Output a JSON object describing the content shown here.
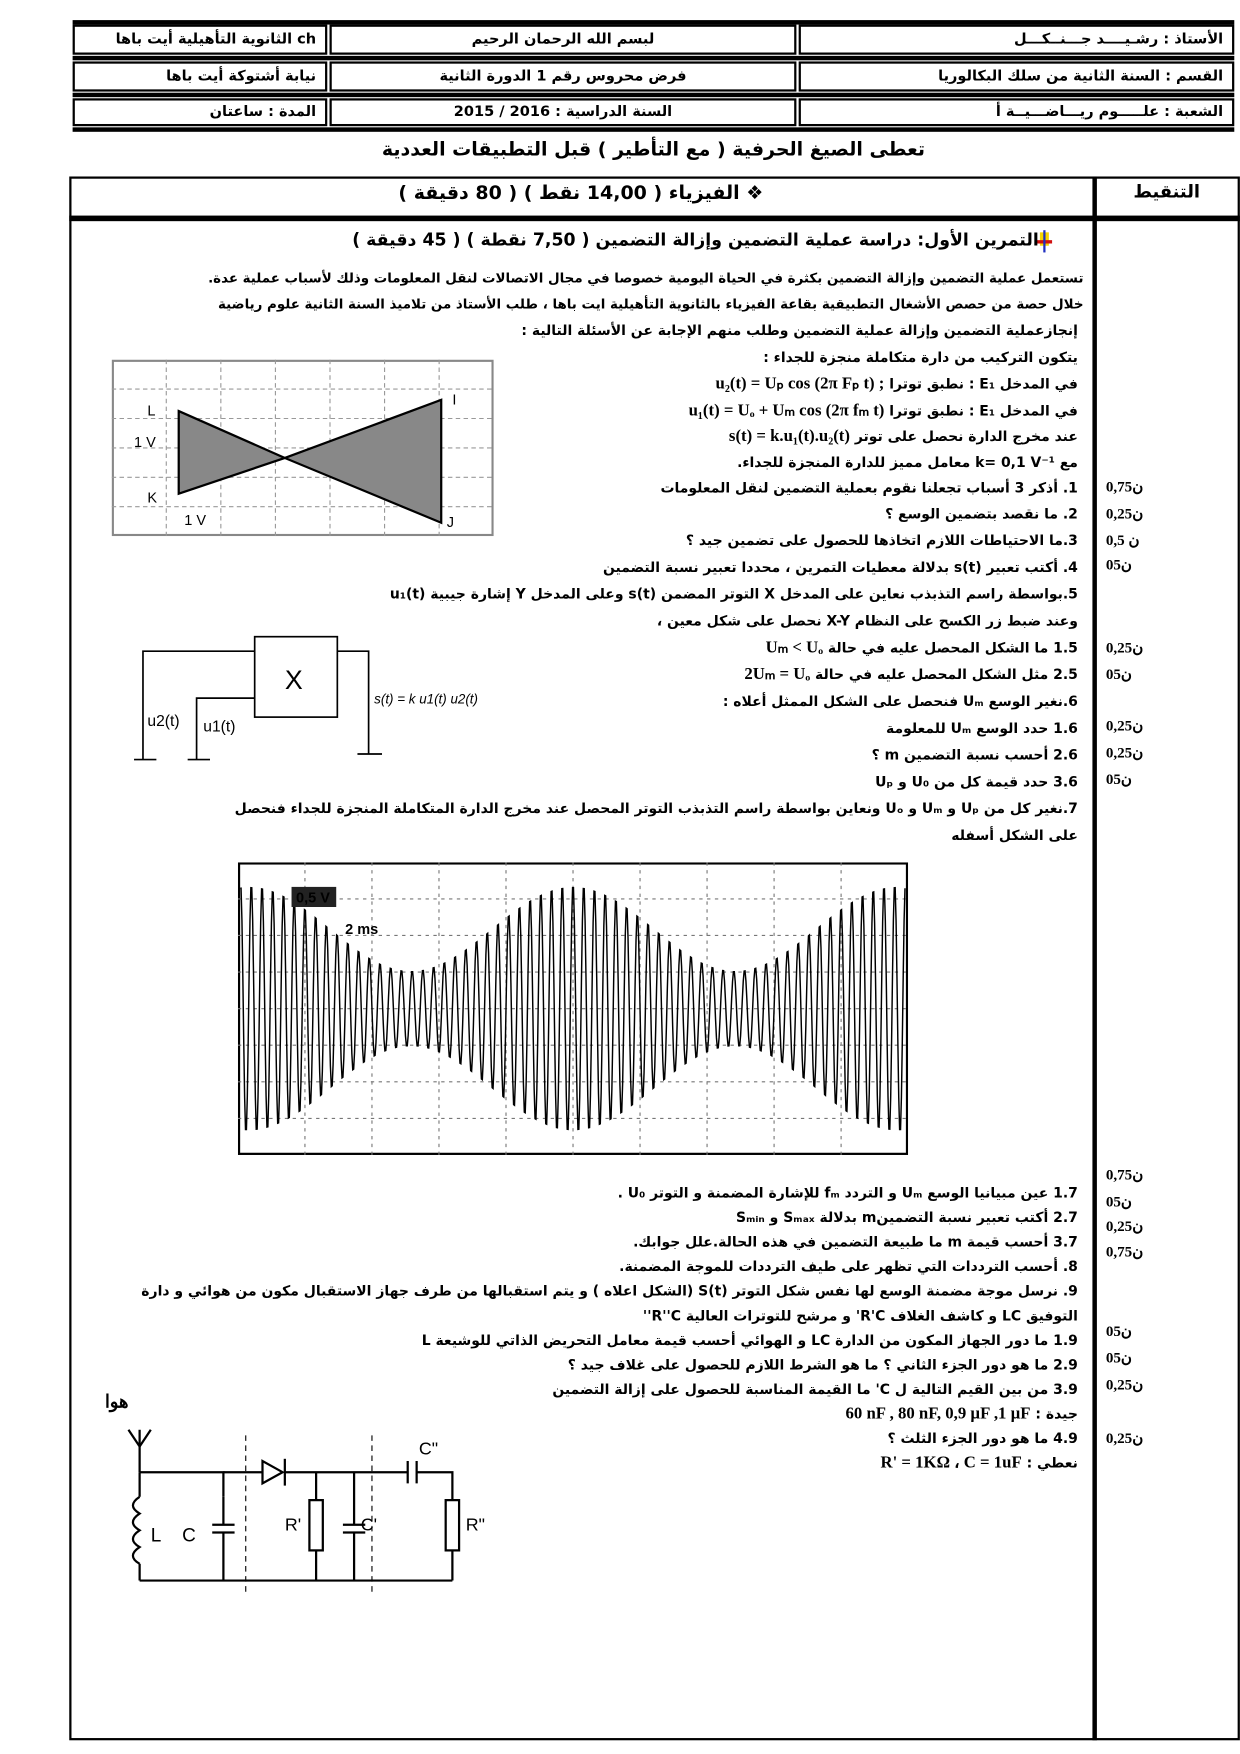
{
  "header": {
    "teacher": "الأستاذ : رشـيــــد جـــنــكـــل",
    "bismillah": "لبسم الله الرحمان الرحيم",
    "school": "ch الثانوية التأهيلية أيت باها",
    "level": "القسم : السنة الثانية من سلك البكالوريا",
    "exam": "فرض محروس رقم 1 الدورة الثانية",
    "directorate": "نيابة أشتوكة أيت باها",
    "branch": "الشعبة : علـــــوم ريـــاضـــيــة أ",
    "year": "السنة الدراسية : 2016 / 2015",
    "duration": "المدة : ساعتان"
  },
  "notice": "تعطى الصيغ الحرفية ( مع التأطير ) قبل التطبيقات العددية",
  "grading_header": "التنقيط",
  "physics_header": "❖ الفيزياء ( 14,00 نقط )  ( 80 دقيقة )",
  "exercise_title": "التمرين الأول: دراسة عملية التضمين وإزالة التضمين  ( 7,50 نقطة ) (  45 دقيقة )",
  "lines": [
    {
      "ar": "تستعمل عملية التضمين وإزالة التضمين  بكثرة في الحياة اليومية خصوصا في مجال الاتصالات لنقل المعلومات وذلك لأسباب عملية عدة."
    },
    {
      "ar": "خلال حصة من حصص الأشغال التطبيقية بقاعة الفيزياء بالثانوية التأهيلية ايت باها ، طلب الأستاذ من تلاميذ السنة الثانية علوم رياضية"
    },
    {
      "ar": "إنجازعملية التضمين وإزالة عملية التضمين وطلب منهم الإجابة عن الأسئلة التالية :"
    },
    {
      "ar": "يتكون التركيب من دارة متكاملة منجزة للجداء :"
    },
    {
      "ar": "في المدخل E₁ : نطبق توترا",
      "math": "u₂(t) = Uₚ cos (2π Fₚ t)  ;"
    },
    {
      "ar": "في المدخل E₁ : نطبق توترا",
      "math": "u₁(t) = Uₒ + Uₘ cos (2π fₘ t)"
    },
    {
      "ar": "عند مخرج الدارة نحصل على توتر",
      "math": "s(t) = k.u₁(t).u₂(t)"
    },
    {
      "ar": "مع k= 0,1 V⁻¹  معامل مميز للدارة المنجزة للجداء."
    },
    {
      "ar": "1. أذكر 3 أسباب تجعلنا نقوم بعملية التضمين لنقل المعلومات"
    },
    {
      "ar": "2. ما نقصد بتضمين الوسع ؟"
    },
    {
      "ar": "3.ما الاحتياطات اللازم اتخاذها للحصول على تضمين جيد ؟"
    },
    {
      "ar": "4. أكتب تعبير s(t) بدلالة معطيات التمرين ، محددا تعبير نسبة التضمين"
    },
    {
      "ar": "5.بواسطة راسم التذبذب نعاين على المدخل X التوتر المضمن s(t) وعلى المدخل  Y  إشارة جيبية  u₁(t)"
    },
    {
      "ar": "وعند ضبط زر الكسح على النظام X-Y نحصل على شكل معين ،"
    },
    {
      "ar": "1.5  ما الشكل المحصل عليه في حالة",
      "math": "Uₘ < Uₒ"
    },
    {
      "ar": "2.5  مثل الشكل المحصل عليه   في حالة",
      "math": "2Uₘ = Uₒ"
    },
    {
      "ar": "6.نغير الوسع Uₘ فنحصل على الشكل الممثل أعلاه :"
    },
    {
      "ar": "1.6   حدد الوسع Uₘ  للمعلومة"
    },
    {
      "ar": "2.6   أحسب نسبة التضمين  m  ؟"
    },
    {
      "ar": "3.6   حدد قيمة كل من U₀ و Uₚ"
    },
    {
      "ar": "7.نغير كل من Uₚ  و Uₘ و Uₒ  ونعاين بواسطة راسم التذبذب التوتر المحصل عند مخرج الدارة المتكاملة المنجزة للجداء فنحصل"
    },
    {
      "ar": "على الشكل أسفله"
    },
    {
      "ar": "1.7  عين مبيانيا الوسع Uₘ و التردد fₘ للإشارة المضمنة  و التوتر U₀ ."
    },
    {
      "ar": "2.7  أكتب تعبير نسبة التضمينm  بدلالة  Sₘₐₓ و Sₘᵢₙ"
    },
    {
      "ar": "3.7  أحسب قيمة m  ما طبيعة التضمين في هذه الحالة.علل جوابك."
    },
    {
      "ar": "8.  أحسب الترددات التي تظهر على طيف الترددات للموجة المضمنة."
    },
    {
      "ar": "9.  نرسل موجة مضمنة الوسع لها نفس شكل التوتر S(t)  (الشكل اعلاه ) و يتم استقبالها من طرف  جهاز الاستقبال مكون من هوائي و دارة"
    },
    {
      "ar": "التوفيق  LC و كاشف الغلاف  R'C' و مرشح للتوترات العالية  R''C''"
    },
    {
      "ar": "1.9 ما دور الجهاز المكون من الدارة LC و الهوائي  أحسب قيمة معامل التحريض الذاتي للوشيعة L"
    },
    {
      "ar": "2.9 ما هو دور الجزء الثاني ؟ ما هو الشرط اللازم للحصول على غلاف جيد ؟"
    },
    {
      "ar": "3.9 من بين القيم التالية ل C' ما القيمة المناسبة للحصول على إزالة التضمين"
    },
    {
      "ar": "جيدة :",
      "math": "60 nF , 80 nF,  0,9 µF ,1 µF"
    },
    {
      "ar": "4.9 ما هو دور الجزء الثلث ؟"
    },
    {
      "ar": "نعطي :",
      "math": "R' = 1KΩ      ،      C = 1uF"
    }
  ],
  "grades": [
    "0,75ن",
    "0,25ن",
    "0,5 ن",
    "0ن5",
    "0,25ن",
    "0ن5",
    "0,25ن",
    "0,25ن",
    "0ن5",
    "0,75ن",
    "0ن5",
    "0,25ن",
    "0,75ن",
    "0ن5",
    "0ن5",
    "0,25ن",
    "0,25ن"
  ],
  "figures": {
    "lissajous": {
      "L": "L",
      "K": "K",
      "I": "I",
      "J": "J",
      "vdiv": "1 V",
      "hdiv": "1 V"
    },
    "multiplier": {
      "block": "X",
      "u2": "u2(t)",
      "u1": "u1(t)",
      "s": "s(t) = k u1(t) u2(t)"
    },
    "oscillogram": {
      "vdiv": "0,5 V",
      "tdiv": "2 ms"
    },
    "receiver": {
      "antenna": "هوائي الاستقبال",
      "L": "L",
      "C": "C",
      "R1": "R'",
      "C1": "C'",
      "C2": "C\"",
      "R2": "R\""
    }
  }
}
